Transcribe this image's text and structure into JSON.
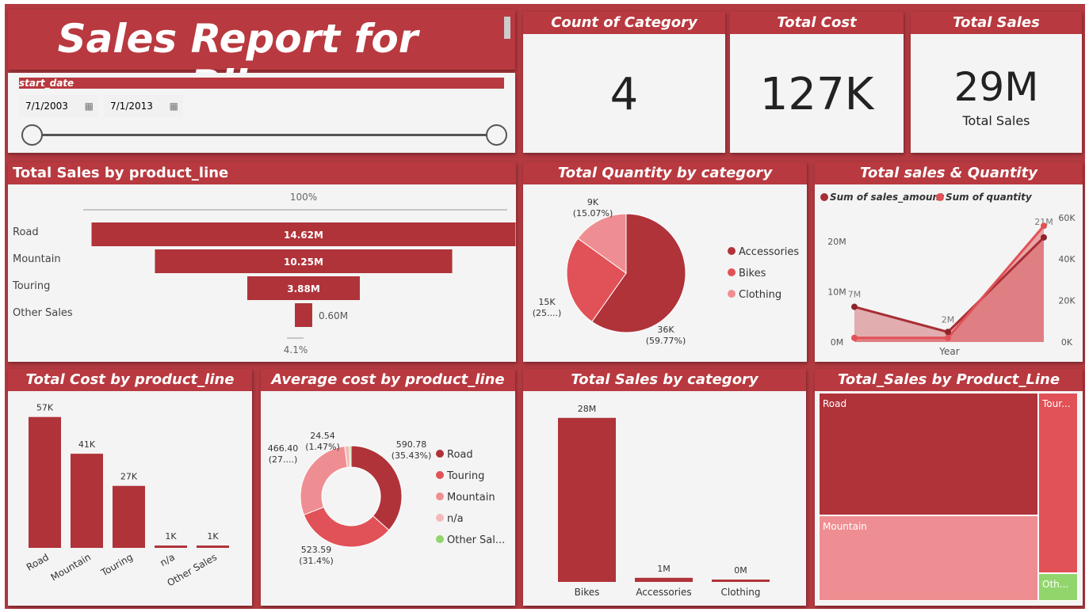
{
  "title": "Sales Report for Bike",
  "slicer": {
    "label": "start_date",
    "start": "7/1/2003",
    "end": "7/1/2013",
    "calendar_icon": "calendar-icon"
  },
  "cards": {
    "count": {
      "header": "Count of Category",
      "value": "4"
    },
    "cost": {
      "header": "Total Cost",
      "value": "127K"
    },
    "sales": {
      "header": "Total Sales",
      "value": "29M",
      "sub": "Total Sales"
    }
  },
  "colors": {
    "dark": "#b0333a",
    "mid": "#e05257",
    "light": "#ef8e92",
    "pale": "#f5b8bb",
    "green": "#92d56d",
    "header": "#b8393f"
  },
  "chart_data": [
    {
      "id": "funnel",
      "type": "bar",
      "title": "Total Sales by product_line",
      "categories": [
        "Road",
        "Mountain",
        "Touring",
        "Other Sales"
      ],
      "values": [
        14.62,
        10.25,
        3.88,
        0.6
      ],
      "labels": [
        "14.62M",
        "10.25M",
        "3.88M",
        "0.60M"
      ],
      "top_pct": "100%",
      "bottom_pct": "4.1%"
    },
    {
      "id": "pie",
      "type": "pie",
      "title": "Total Quantity by category",
      "categories": [
        "Accessories",
        "Bikes",
        "Clothing"
      ],
      "values": [
        59.77,
        25.16,
        15.07
      ],
      "labels": [
        "36K\n(59.77%)",
        "15K\n(25....)",
        "9K\n(15.07%)"
      ]
    },
    {
      "id": "line",
      "type": "line",
      "title": "Total sales & Quantity",
      "xlabel": "Year",
      "series": [
        {
          "name": "Sum of sales_amount",
          "values": [
            7,
            2,
            20.8
          ],
          "labels": [
            "7M",
            "2M",
            "21M"
          ]
        },
        {
          "name": "Sum of quantity",
          "values": [
            2,
            2,
            56
          ]
        }
      ],
      "yleft_ticks": [
        "0M",
        "10M",
        "20M"
      ],
      "yright_ticks": [
        "0K",
        "20K",
        "40K",
        "60K"
      ]
    },
    {
      "id": "costbar",
      "type": "bar",
      "title": "Total Cost by product_line",
      "categories": [
        "Road",
        "Mountain",
        "Touring",
        "n/a",
        "Other Sales"
      ],
      "values": [
        57,
        41,
        27,
        1,
        1
      ],
      "labels": [
        "57K",
        "41K",
        "27K",
        "1K",
        "1K"
      ]
    },
    {
      "id": "donut",
      "type": "pie",
      "title": "Average cost by product_line",
      "categories": [
        "Road",
        "Touring",
        "Mountain",
        "n/a",
        "Other Sal..."
      ],
      "values": [
        590.78,
        523.59,
        466.4,
        24.54,
        8
      ],
      "labels": [
        "590.78\n(35.43%)",
        "523.59\n(31.4%)",
        "466.40\n(27....)",
        "24.54\n(1.47%)",
        ""
      ]
    },
    {
      "id": "catbar",
      "type": "bar",
      "title": "Total Sales by category",
      "categories": [
        "Bikes",
        "Accessories",
        "Clothing"
      ],
      "values": [
        28,
        0.7,
        0.3
      ],
      "labels": [
        "28M",
        "1M",
        "0M"
      ]
    },
    {
      "id": "treemap",
      "type": "table",
      "title": "Total_Sales by Product_Line",
      "categories": [
        "Road",
        "Mountain",
        "Tour...",
        "Oth..."
      ]
    }
  ]
}
